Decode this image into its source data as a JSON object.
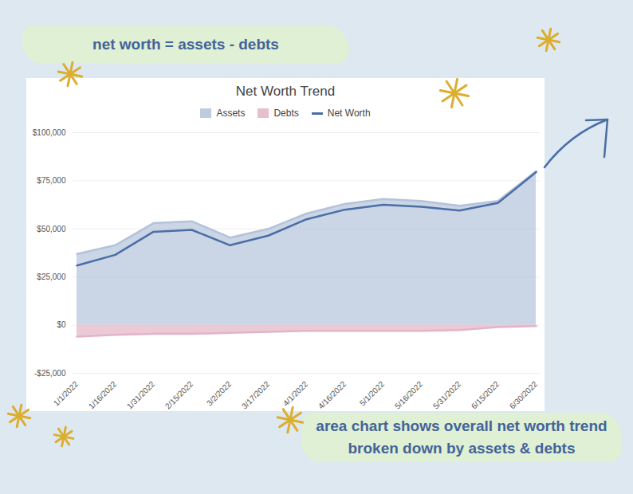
{
  "chart_data": {
    "type": "area",
    "title": "Net Worth Trend",
    "annotations": [
      "net worth = assets - debts",
      "area chart shows overall net worth trend broken down by assets & debts"
    ],
    "categories": [
      "1/1/2022",
      "1/16/2022",
      "1/31/2022",
      "2/15/2022",
      "3/2/2022",
      "3/17/2022",
      "4/1/2022",
      "4/16/2022",
      "5/1/2022",
      "5/16/2022",
      "5/31/2022",
      "6/15/2022",
      "6/30/2022"
    ],
    "series": [
      {
        "name": "Assets",
        "type": "area",
        "color": "#b4c3da",
        "values": [
          37000,
          41500,
          53000,
          54000,
          45500,
          50000,
          58000,
          63000,
          65500,
          64500,
          62000,
          64500,
          80000
        ]
      },
      {
        "name": "Debts",
        "type": "area",
        "color": "#e2b4c5",
        "values": [
          -6000,
          -5000,
          -4500,
          -4500,
          -4000,
          -3500,
          -3000,
          -3000,
          -3000,
          -3000,
          -2500,
          -1000,
          -500
        ]
      },
      {
        "name": "Net Worth",
        "type": "line",
        "color": "#4a6ea6",
        "values": [
          31000,
          36500,
          48500,
          49500,
          41500,
          46500,
          55000,
          60000,
          62500,
          61500,
          59500,
          63500,
          79500
        ]
      }
    ],
    "ylim": [
      -25000,
      100000
    ],
    "yticks": [
      {
        "value": -25000,
        "label": "-$25,000"
      },
      {
        "value": 0,
        "label": "$0"
      },
      {
        "value": 25000,
        "label": "$25,000"
      },
      {
        "value": 50000,
        "label": "$50,000"
      },
      {
        "value": 75000,
        "label": "$75,000"
      },
      {
        "value": 100000,
        "label": "$100,000"
      }
    ],
    "grid": true,
    "legend": "top"
  }
}
